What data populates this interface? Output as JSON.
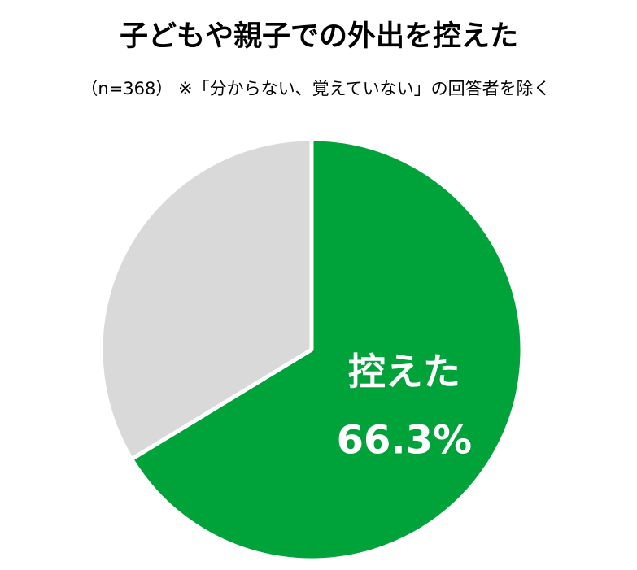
{
  "chart_data": {
    "type": "pie",
    "title": "子どもや親子での外出を控えた",
    "subtitle": "（n=368） ※「分からない、覚えていない」の回答者を除く",
    "categories": [
      "控えた",
      null
    ],
    "values": [
      66.3,
      33.7
    ],
    "value_labels": [
      "66.3%",
      null
    ],
    "colors": [
      "#00a23a",
      "#d9d9d9"
    ]
  }
}
